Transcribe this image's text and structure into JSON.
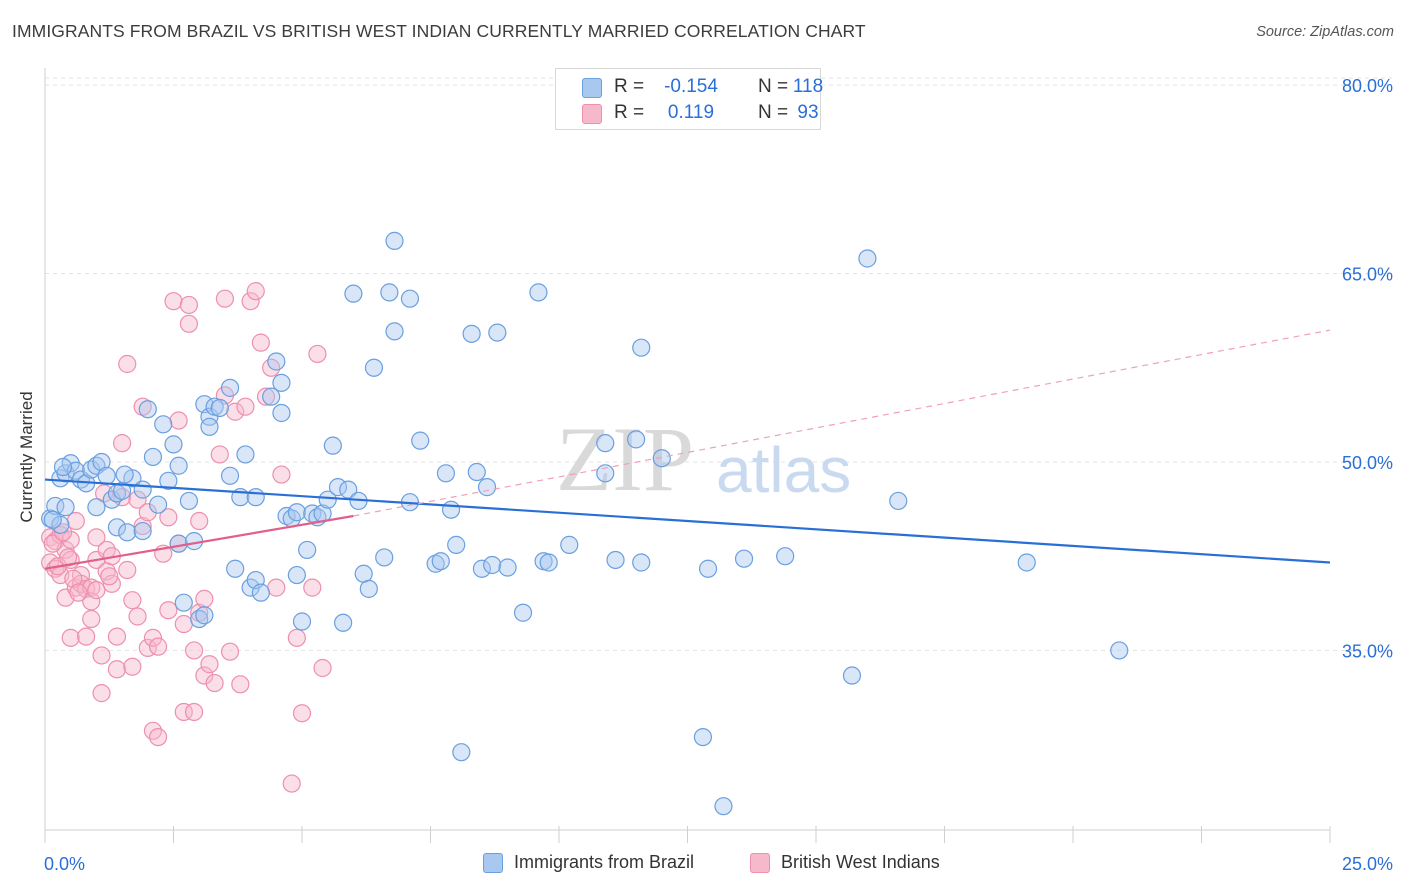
{
  "title": "IMMIGRANTS FROM BRAZIL VS BRITISH WEST INDIAN CURRENTLY MARRIED CORRELATION CHART",
  "source": "Source: ZipAtlas.com",
  "watermark": {
    "zip": "ZIP",
    "atlas": "atlas"
  },
  "legend_top": {
    "rows": [
      {
        "r_label": "R =",
        "r_value": "-0.154",
        "n_label": "N =",
        "n_value": "118"
      },
      {
        "r_label": "R =",
        "r_value": "0.119",
        "n_label": "N =",
        "n_value": "93"
      }
    ]
  },
  "legend_bottom": {
    "items": [
      "Immigrants from Brazil",
      "British West Indians"
    ]
  },
  "colors": {
    "blue_fill": "#a9c8f0",
    "blue_stroke": "#6a9fe0",
    "blue_line": "#2a6fd6",
    "pink_fill": "#f6b8cb",
    "pink_stroke": "#ee8fad",
    "pink_line": "#e0608a",
    "axis_text": "#2a6fd6",
    "grid": "#e3e3e3"
  },
  "chart_data": {
    "type": "scatter",
    "title": "IMMIGRANTS FROM BRAZIL VS BRITISH WEST INDIAN CURRENTLY MARRIED CORRELATION CHART",
    "xlabel": "",
    "ylabel": "Currently Married",
    "xlim": [
      0,
      25
    ],
    "ylim": [
      21.5,
      82.0
    ],
    "x_tick_labels": [
      {
        "value": 0,
        "label": "0.0%"
      },
      {
        "value": 25,
        "label": "25.0%"
      }
    ],
    "y_tick_labels": [
      {
        "value": 35,
        "label": "35.0%"
      },
      {
        "value": 50,
        "label": "50.0%"
      },
      {
        "value": 65,
        "label": "65.0%"
      },
      {
        "value": 80,
        "label": "80.0%"
      }
    ],
    "grid": true,
    "series": [
      {
        "name": "Immigrants from Brazil",
        "color": "blue",
        "R": -0.154,
        "N": 118,
        "trend": {
          "x": [
            0,
            25
          ],
          "y": [
            48.6,
            42.0
          ]
        },
        "points": [
          [
            0.1,
            45.5
          ],
          [
            0.2,
            46.5
          ],
          [
            0.3,
            45.0
          ],
          [
            0.3,
            48.7
          ],
          [
            0.4,
            46.4
          ],
          [
            0.4,
            49.1
          ],
          [
            0.5,
            49.9
          ],
          [
            0.6,
            49.3
          ],
          [
            0.7,
            48.6
          ],
          [
            0.8,
            48.3
          ],
          [
            0.9,
            49.4
          ],
          [
            1.0,
            46.4
          ],
          [
            1.0,
            49.7
          ],
          [
            1.1,
            50.0
          ],
          [
            1.2,
            48.9
          ],
          [
            1.3,
            47.0
          ],
          [
            1.4,
            47.5
          ],
          [
            1.4,
            44.8
          ],
          [
            1.5,
            47.7
          ],
          [
            1.6,
            44.4
          ],
          [
            1.7,
            48.7
          ],
          [
            1.9,
            47.8
          ],
          [
            1.9,
            44.5
          ],
          [
            2.0,
            54.2
          ],
          [
            2.1,
            50.4
          ],
          [
            2.2,
            46.6
          ],
          [
            2.3,
            53.0
          ],
          [
            2.4,
            48.5
          ],
          [
            2.5,
            51.4
          ],
          [
            2.6,
            43.5
          ],
          [
            2.6,
            49.7
          ],
          [
            2.7,
            38.8
          ],
          [
            2.8,
            46.9
          ],
          [
            2.9,
            43.7
          ],
          [
            3.0,
            37.5
          ],
          [
            3.1,
            37.8
          ],
          [
            3.1,
            54.6
          ],
          [
            3.2,
            53.6
          ],
          [
            3.2,
            52.8
          ],
          [
            3.3,
            54.4
          ],
          [
            3.4,
            54.3
          ],
          [
            3.6,
            48.9
          ],
          [
            3.6,
            55.9
          ],
          [
            3.7,
            41.5
          ],
          [
            3.8,
            47.2
          ],
          [
            3.9,
            50.6
          ],
          [
            4.0,
            40.0
          ],
          [
            4.1,
            40.6
          ],
          [
            4.1,
            47.2
          ],
          [
            4.2,
            39.6
          ],
          [
            4.4,
            55.2
          ],
          [
            4.5,
            58.0
          ],
          [
            4.6,
            53.9
          ],
          [
            4.6,
            56.3
          ],
          [
            4.7,
            45.7
          ],
          [
            4.8,
            45.5
          ],
          [
            4.9,
            41.0
          ],
          [
            4.9,
            46.0
          ],
          [
            5.0,
            37.3
          ],
          [
            5.1,
            43.0
          ],
          [
            5.2,
            45.9
          ],
          [
            5.3,
            45.6
          ],
          [
            5.4,
            45.9
          ],
          [
            5.5,
            47.0
          ],
          [
            5.6,
            51.3
          ],
          [
            5.7,
            48.0
          ],
          [
            5.8,
            37.2
          ],
          [
            5.9,
            47.8
          ],
          [
            6.0,
            63.4
          ],
          [
            6.1,
            46.9
          ],
          [
            6.2,
            41.1
          ],
          [
            6.3,
            39.9
          ],
          [
            6.4,
            57.5
          ],
          [
            6.6,
            42.4
          ],
          [
            6.7,
            63.5
          ],
          [
            6.8,
            60.4
          ],
          [
            6.8,
            67.6
          ],
          [
            7.1,
            63.0
          ],
          [
            7.1,
            46.8
          ],
          [
            7.3,
            51.7
          ],
          [
            7.6,
            41.9
          ],
          [
            7.7,
            42.1
          ],
          [
            7.8,
            49.1
          ],
          [
            7.9,
            46.2
          ],
          [
            8.0,
            43.4
          ],
          [
            8.1,
            26.9
          ],
          [
            8.3,
            60.2
          ],
          [
            8.4,
            49.2
          ],
          [
            8.5,
            41.5
          ],
          [
            8.6,
            48.0
          ],
          [
            8.7,
            41.8
          ],
          [
            8.8,
            60.3
          ],
          [
            9.0,
            41.6
          ],
          [
            9.3,
            38.0
          ],
          [
            9.6,
            63.5
          ],
          [
            9.7,
            42.1
          ],
          [
            9.8,
            42.0
          ],
          [
            10.2,
            43.4
          ],
          [
            10.9,
            49.1
          ],
          [
            10.9,
            51.5
          ],
          [
            11.1,
            42.2
          ],
          [
            11.5,
            51.8
          ],
          [
            11.6,
            59.1
          ],
          [
            11.6,
            42.0
          ],
          [
            12.0,
            50.3
          ],
          [
            12.8,
            28.1
          ],
          [
            12.9,
            41.5
          ],
          [
            13.2,
            22.6
          ],
          [
            13.6,
            42.3
          ],
          [
            14.4,
            42.5
          ],
          [
            15.7,
            33.0
          ],
          [
            16.0,
            66.2
          ],
          [
            16.6,
            46.9
          ],
          [
            19.1,
            42.0
          ],
          [
            20.9,
            35.0
          ],
          [
            0.15,
            45.4
          ],
          [
            0.35,
            49.6
          ],
          [
            1.55,
            49.0
          ]
        ]
      },
      {
        "name": "British West Indians",
        "color": "pink",
        "R": 0.119,
        "N": 93,
        "trend": {
          "x": [
            0,
            6.0
          ],
          "y": [
            41.5,
            45.7
          ]
        },
        "trend_dashed": {
          "x": [
            6.0,
            25
          ],
          "y": [
            45.7,
            60.5
          ]
        },
        "points": [
          [
            0.1,
            44.0
          ],
          [
            0.1,
            42.0
          ],
          [
            0.2,
            43.7
          ],
          [
            0.2,
            41.5
          ],
          [
            0.3,
            44.2
          ],
          [
            0.3,
            41.0
          ],
          [
            0.4,
            43.0
          ],
          [
            0.4,
            39.2
          ],
          [
            0.5,
            42.2
          ],
          [
            0.5,
            36.0
          ],
          [
            0.5,
            43.8
          ],
          [
            0.6,
            40.0
          ],
          [
            0.6,
            45.3
          ],
          [
            0.7,
            41.0
          ],
          [
            0.7,
            40.3
          ],
          [
            0.8,
            36.1
          ],
          [
            0.8,
            39.9
          ],
          [
            0.9,
            40.0
          ],
          [
            0.9,
            37.5
          ],
          [
            0.9,
            38.9
          ],
          [
            1.0,
            42.2
          ],
          [
            1.0,
            44.0
          ],
          [
            1.0,
            39.8
          ],
          [
            1.1,
            34.6
          ],
          [
            1.1,
            31.6
          ],
          [
            1.2,
            43.0
          ],
          [
            1.2,
            41.3
          ],
          [
            1.3,
            42.5
          ],
          [
            1.3,
            40.3
          ],
          [
            1.4,
            33.5
          ],
          [
            1.4,
            36.1
          ],
          [
            1.5,
            47.2
          ],
          [
            1.5,
            51.5
          ],
          [
            1.6,
            57.8
          ],
          [
            1.6,
            41.4
          ],
          [
            1.7,
            39.0
          ],
          [
            1.7,
            33.7
          ],
          [
            1.8,
            37.7
          ],
          [
            1.8,
            47.0
          ],
          [
            1.9,
            54.4
          ],
          [
            1.9,
            44.9
          ],
          [
            2.0,
            46.0
          ],
          [
            2.0,
            35.2
          ],
          [
            2.1,
            28.6
          ],
          [
            2.1,
            36.0
          ],
          [
            2.2,
            35.3
          ],
          [
            2.2,
            28.1
          ],
          [
            2.3,
            42.7
          ],
          [
            2.4,
            38.2
          ],
          [
            2.4,
            45.6
          ],
          [
            2.5,
            62.8
          ],
          [
            2.6,
            53.3
          ],
          [
            2.6,
            43.5
          ],
          [
            2.7,
            30.1
          ],
          [
            2.7,
            37.1
          ],
          [
            2.8,
            61.0
          ],
          [
            2.8,
            62.5
          ],
          [
            2.9,
            30.1
          ],
          [
            2.9,
            35.0
          ],
          [
            3.0,
            38.0
          ],
          [
            3.0,
            45.3
          ],
          [
            3.1,
            39.1
          ],
          [
            3.1,
            33.0
          ],
          [
            3.2,
            33.9
          ],
          [
            3.3,
            32.4
          ],
          [
            3.4,
            50.6
          ],
          [
            3.5,
            63.0
          ],
          [
            3.5,
            55.3
          ],
          [
            3.6,
            34.9
          ],
          [
            3.7,
            54.0
          ],
          [
            3.8,
            32.3
          ],
          [
            3.9,
            54.4
          ],
          [
            4.0,
            62.8
          ],
          [
            4.1,
            63.6
          ],
          [
            4.2,
            59.5
          ],
          [
            4.3,
            55.2
          ],
          [
            4.4,
            57.5
          ],
          [
            4.5,
            40.0
          ],
          [
            4.6,
            49.0
          ],
          [
            4.8,
            24.4
          ],
          [
            4.9,
            36.0
          ],
          [
            5.0,
            30.0
          ],
          [
            5.2,
            40.0
          ],
          [
            5.3,
            58.6
          ],
          [
            5.4,
            33.6
          ],
          [
            0.15,
            43.5
          ],
          [
            0.25,
            41.7
          ],
          [
            0.35,
            44.4
          ],
          [
            0.45,
            42.4
          ],
          [
            0.55,
            40.7
          ],
          [
            0.65,
            39.6
          ],
          [
            1.15,
            47.5
          ],
          [
            1.25,
            40.9
          ]
        ]
      }
    ]
  }
}
